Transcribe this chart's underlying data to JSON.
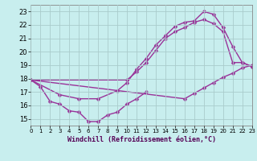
{
  "xlabel": "Windchill (Refroidissement éolien,°C)",
  "bg_color": "#c8eeee",
  "line_color": "#993399",
  "grid_color": "#aacccc",
  "markersize": 2.5,
  "linewidth": 1.0,
  "xlim": [
    0,
    23
  ],
  "ylim": [
    14.5,
    23.5
  ],
  "yticks": [
    15,
    16,
    17,
    18,
    19,
    20,
    21,
    22,
    23
  ],
  "xticks": [
    0,
    1,
    2,
    3,
    4,
    5,
    6,
    7,
    8,
    9,
    10,
    11,
    12,
    13,
    14,
    15,
    16,
    17,
    18,
    19,
    20,
    21,
    22,
    23
  ],
  "lines": [
    {
      "x": [
        0,
        1,
        2,
        3,
        4,
        5,
        6,
        7,
        8,
        9,
        10,
        11,
        12
      ],
      "y": [
        17.9,
        17.4,
        16.3,
        16.1,
        15.6,
        15.5,
        14.8,
        14.8,
        15.3,
        15.5,
        16.1,
        16.5,
        17.0
      ]
    },
    {
      "x": [
        0,
        3,
        5,
        7,
        9,
        10,
        11,
        12,
        13,
        14,
        15,
        16,
        17,
        18,
        19,
        20,
        21,
        22,
        23
      ],
      "y": [
        17.9,
        16.8,
        16.5,
        16.5,
        17.1,
        17.7,
        18.7,
        19.5,
        20.5,
        21.2,
        21.9,
        22.2,
        22.3,
        23.0,
        22.8,
        21.8,
        20.4,
        19.2,
        18.9
      ]
    },
    {
      "x": [
        0,
        10,
        11,
        12,
        13,
        14,
        15,
        16,
        17,
        18,
        19,
        20,
        21,
        22,
        23
      ],
      "y": [
        17.9,
        17.9,
        18.5,
        19.2,
        20.1,
        21.0,
        21.5,
        21.8,
        22.2,
        22.4,
        22.1,
        21.5,
        19.2,
        19.2,
        18.9
      ]
    },
    {
      "x": [
        0,
        16,
        17,
        18,
        19,
        20,
        21,
        22,
        23
      ],
      "y": [
        17.9,
        16.5,
        16.9,
        17.3,
        17.7,
        18.1,
        18.4,
        18.8,
        19.0
      ]
    }
  ]
}
